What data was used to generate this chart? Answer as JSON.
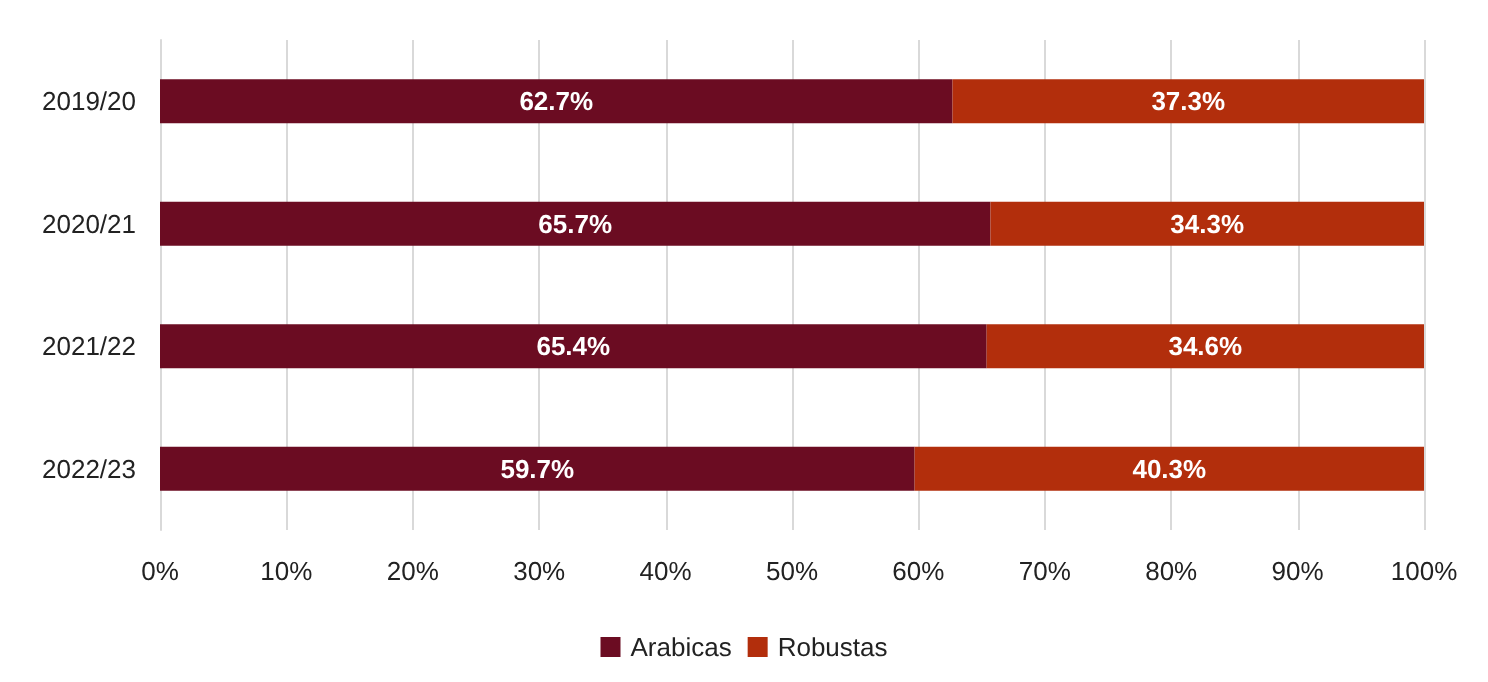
{
  "chart_data": {
    "type": "bar",
    "orientation": "horizontal",
    "stacked": true,
    "categories": [
      "2019/20",
      "2020/21",
      "2021/22",
      "2022/23"
    ],
    "series": [
      {
        "name": "Arabicas",
        "color": "#6b0c22",
        "values": [
          62.7,
          65.7,
          65.4,
          59.7
        ],
        "value_labels": [
          "62.7%",
          "65.7%",
          "65.4%",
          "59.7%"
        ]
      },
      {
        "name": "Robustas",
        "color": "#b22e0c",
        "values": [
          37.3,
          34.3,
          34.6,
          40.3
        ],
        "value_labels": [
          "37.3%",
          "34.3%",
          "34.6%",
          "40.3%"
        ]
      }
    ],
    "xlim": [
      0,
      100
    ],
    "xticks": [
      {
        "value": 0,
        "label": "0%"
      },
      {
        "value": 10,
        "label": "10%"
      },
      {
        "value": 20,
        "label": "20%"
      },
      {
        "value": 30,
        "label": "30%"
      },
      {
        "value": 40,
        "label": "40%"
      },
      {
        "value": 50,
        "label": "50%"
      },
      {
        "value": 60,
        "label": "60%"
      },
      {
        "value": 70,
        "label": "70%"
      },
      {
        "value": 80,
        "label": "80%"
      },
      {
        "value": 90,
        "label": "90%"
      },
      {
        "value": 100,
        "label": "100%"
      }
    ],
    "grid": "x",
    "legend": "bottom"
  }
}
